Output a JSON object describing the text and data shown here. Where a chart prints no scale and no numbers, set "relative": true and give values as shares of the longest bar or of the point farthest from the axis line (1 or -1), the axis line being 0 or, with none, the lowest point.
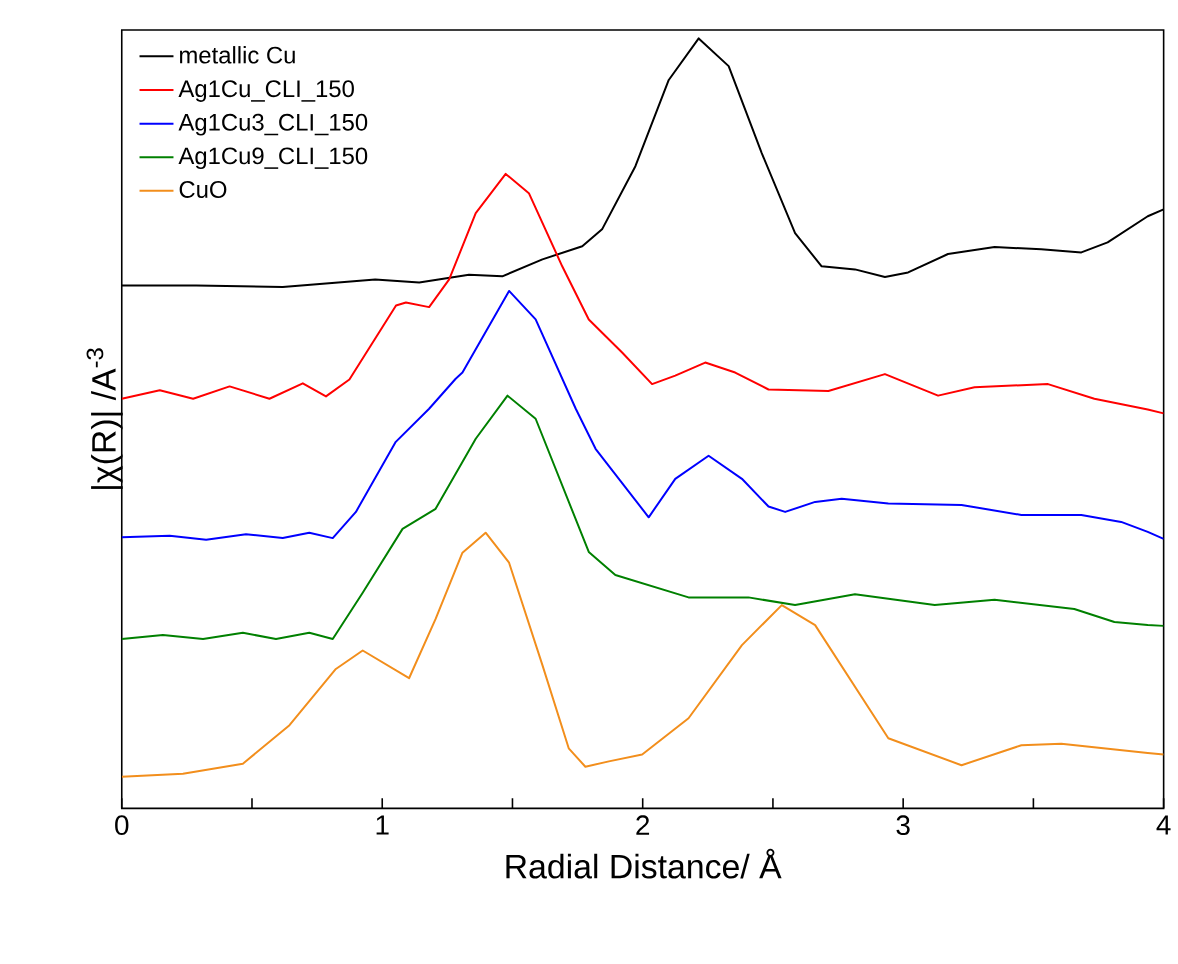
{
  "chart_data": {
    "type": "line",
    "relative": true,
    "xlabel": "Radial Distance/ Å",
    "ylabel": "|χ(R)| /A$^{-3}$",
    "xlim": [
      0,
      4
    ],
    "xticks": [
      0,
      {
        "value": 0.5,
        "label": null
      },
      1,
      {
        "value": 1.5,
        "label": null
      },
      2,
      {
        "value": 2.5,
        "label": null
      },
      3,
      {
        "value": 3.5,
        "label": null
      },
      4
    ],
    "tick_labels": "x",
    "legend": "top left",
    "line_style": "solid",
    "marker": "none",
    "series": [
      {
        "name": "metallic Cu",
        "color": "#000000",
        "x": [
          0,
          0.286,
          0.618,
          0.973,
          1.142,
          1.333,
          1.461,
          1.615,
          1.768,
          1.844,
          1.972,
          2.1,
          2.215,
          2.33,
          2.457,
          2.585,
          2.687,
          2.815,
          2.93,
          3.019,
          3.172,
          3.351,
          3.53,
          3.684,
          3.785,
          3.939,
          4.0
        ],
        "values": [
          0.679,
          0.679,
          0.677,
          0.687,
          0.683,
          0.693,
          0.691,
          0.713,
          0.73,
          0.752,
          0.834,
          0.946,
          1.0,
          0.964,
          0.851,
          0.747,
          0.704,
          0.7,
          0.69,
          0.696,
          0.72,
          0.729,
          0.726,
          0.722,
          0.735,
          0.769,
          0.778
        ]
      },
      {
        "name": "Ag1Cu_CLI_150",
        "color": "#ff0000",
        "x": [
          0,
          0.146,
          0.274,
          0.414,
          0.567,
          0.695,
          0.784,
          0.874,
          1.053,
          1.091,
          1.18,
          1.257,
          1.359,
          1.474,
          1.563,
          1.691,
          1.793,
          1.921,
          2.036,
          2.125,
          2.24,
          2.355,
          2.483,
          2.713,
          2.93,
          3.134,
          3.274,
          3.556,
          3.734,
          3.939,
          4.0
        ],
        "values": [
          0.532,
          0.543,
          0.532,
          0.548,
          0.532,
          0.552,
          0.535,
          0.557,
          0.653,
          0.657,
          0.651,
          0.687,
          0.773,
          0.824,
          0.799,
          0.704,
          0.635,
          0.592,
          0.551,
          0.562,
          0.579,
          0.566,
          0.544,
          0.542,
          0.564,
          0.536,
          0.547,
          0.551,
          0.532,
          0.518,
          0.513
        ]
      },
      {
        "name": "Ag1Cu3_CLI_150",
        "color": "#0000ff",
        "x": [
          0,
          0.184,
          0.324,
          0.477,
          0.618,
          0.72,
          0.81,
          0.899,
          1.052,
          1.18,
          1.282,
          1.308,
          1.487,
          1.589,
          1.743,
          1.819,
          2.023,
          2.125,
          2.253,
          2.381,
          2.483,
          2.547,
          2.662,
          2.764,
          2.943,
          3.224,
          3.454,
          3.684,
          3.837,
          3.939,
          4.0
        ],
        "values": [
          0.352,
          0.354,
          0.349,
          0.356,
          0.351,
          0.358,
          0.351,
          0.385,
          0.476,
          0.519,
          0.558,
          0.566,
          0.672,
          0.635,
          0.519,
          0.467,
          0.378,
          0.428,
          0.458,
          0.428,
          0.392,
          0.385,
          0.398,
          0.402,
          0.396,
          0.394,
          0.381,
          0.381,
          0.372,
          0.359,
          0.35
        ]
      },
      {
        "name": "Ag1Cu9_CLI_150",
        "color": "#008000",
        "x": [
          0,
          0.158,
          0.312,
          0.465,
          0.592,
          0.72,
          0.81,
          0.925,
          1.078,
          1.205,
          1.359,
          1.481,
          1.589,
          1.793,
          1.895,
          2.176,
          2.406,
          2.585,
          2.815,
          3.121,
          3.351,
          3.657,
          3.811,
          3.939,
          4.0
        ],
        "values": [
          0.22,
          0.225,
          0.22,
          0.228,
          0.22,
          0.228,
          0.22,
          0.28,
          0.363,
          0.389,
          0.48,
          0.536,
          0.506,
          0.333,
          0.303,
          0.274,
          0.274,
          0.264,
          0.278,
          0.264,
          0.271,
          0.259,
          0.242,
          0.238,
          0.237
        ]
      },
      {
        "name": "CuO",
        "color": "#f28e1c",
        "x": [
          0,
          0.235,
          0.465,
          0.644,
          0.822,
          0.925,
          1.103,
          1.205,
          1.308,
          1.397,
          1.487,
          1.615,
          1.716,
          1.78,
          1.87,
          1.998,
          2.176,
          2.381,
          2.534,
          2.662,
          2.943,
          3.224,
          3.454,
          3.607,
          3.939,
          4.0
        ],
        "values": [
          0.041,
          0.045,
          0.058,
          0.108,
          0.181,
          0.205,
          0.169,
          0.246,
          0.332,
          0.358,
          0.319,
          0.186,
          0.078,
          0.054,
          0.061,
          0.07,
          0.117,
          0.212,
          0.264,
          0.238,
          0.091,
          0.056,
          0.082,
          0.084,
          0.072,
          0.07
        ]
      }
    ]
  }
}
